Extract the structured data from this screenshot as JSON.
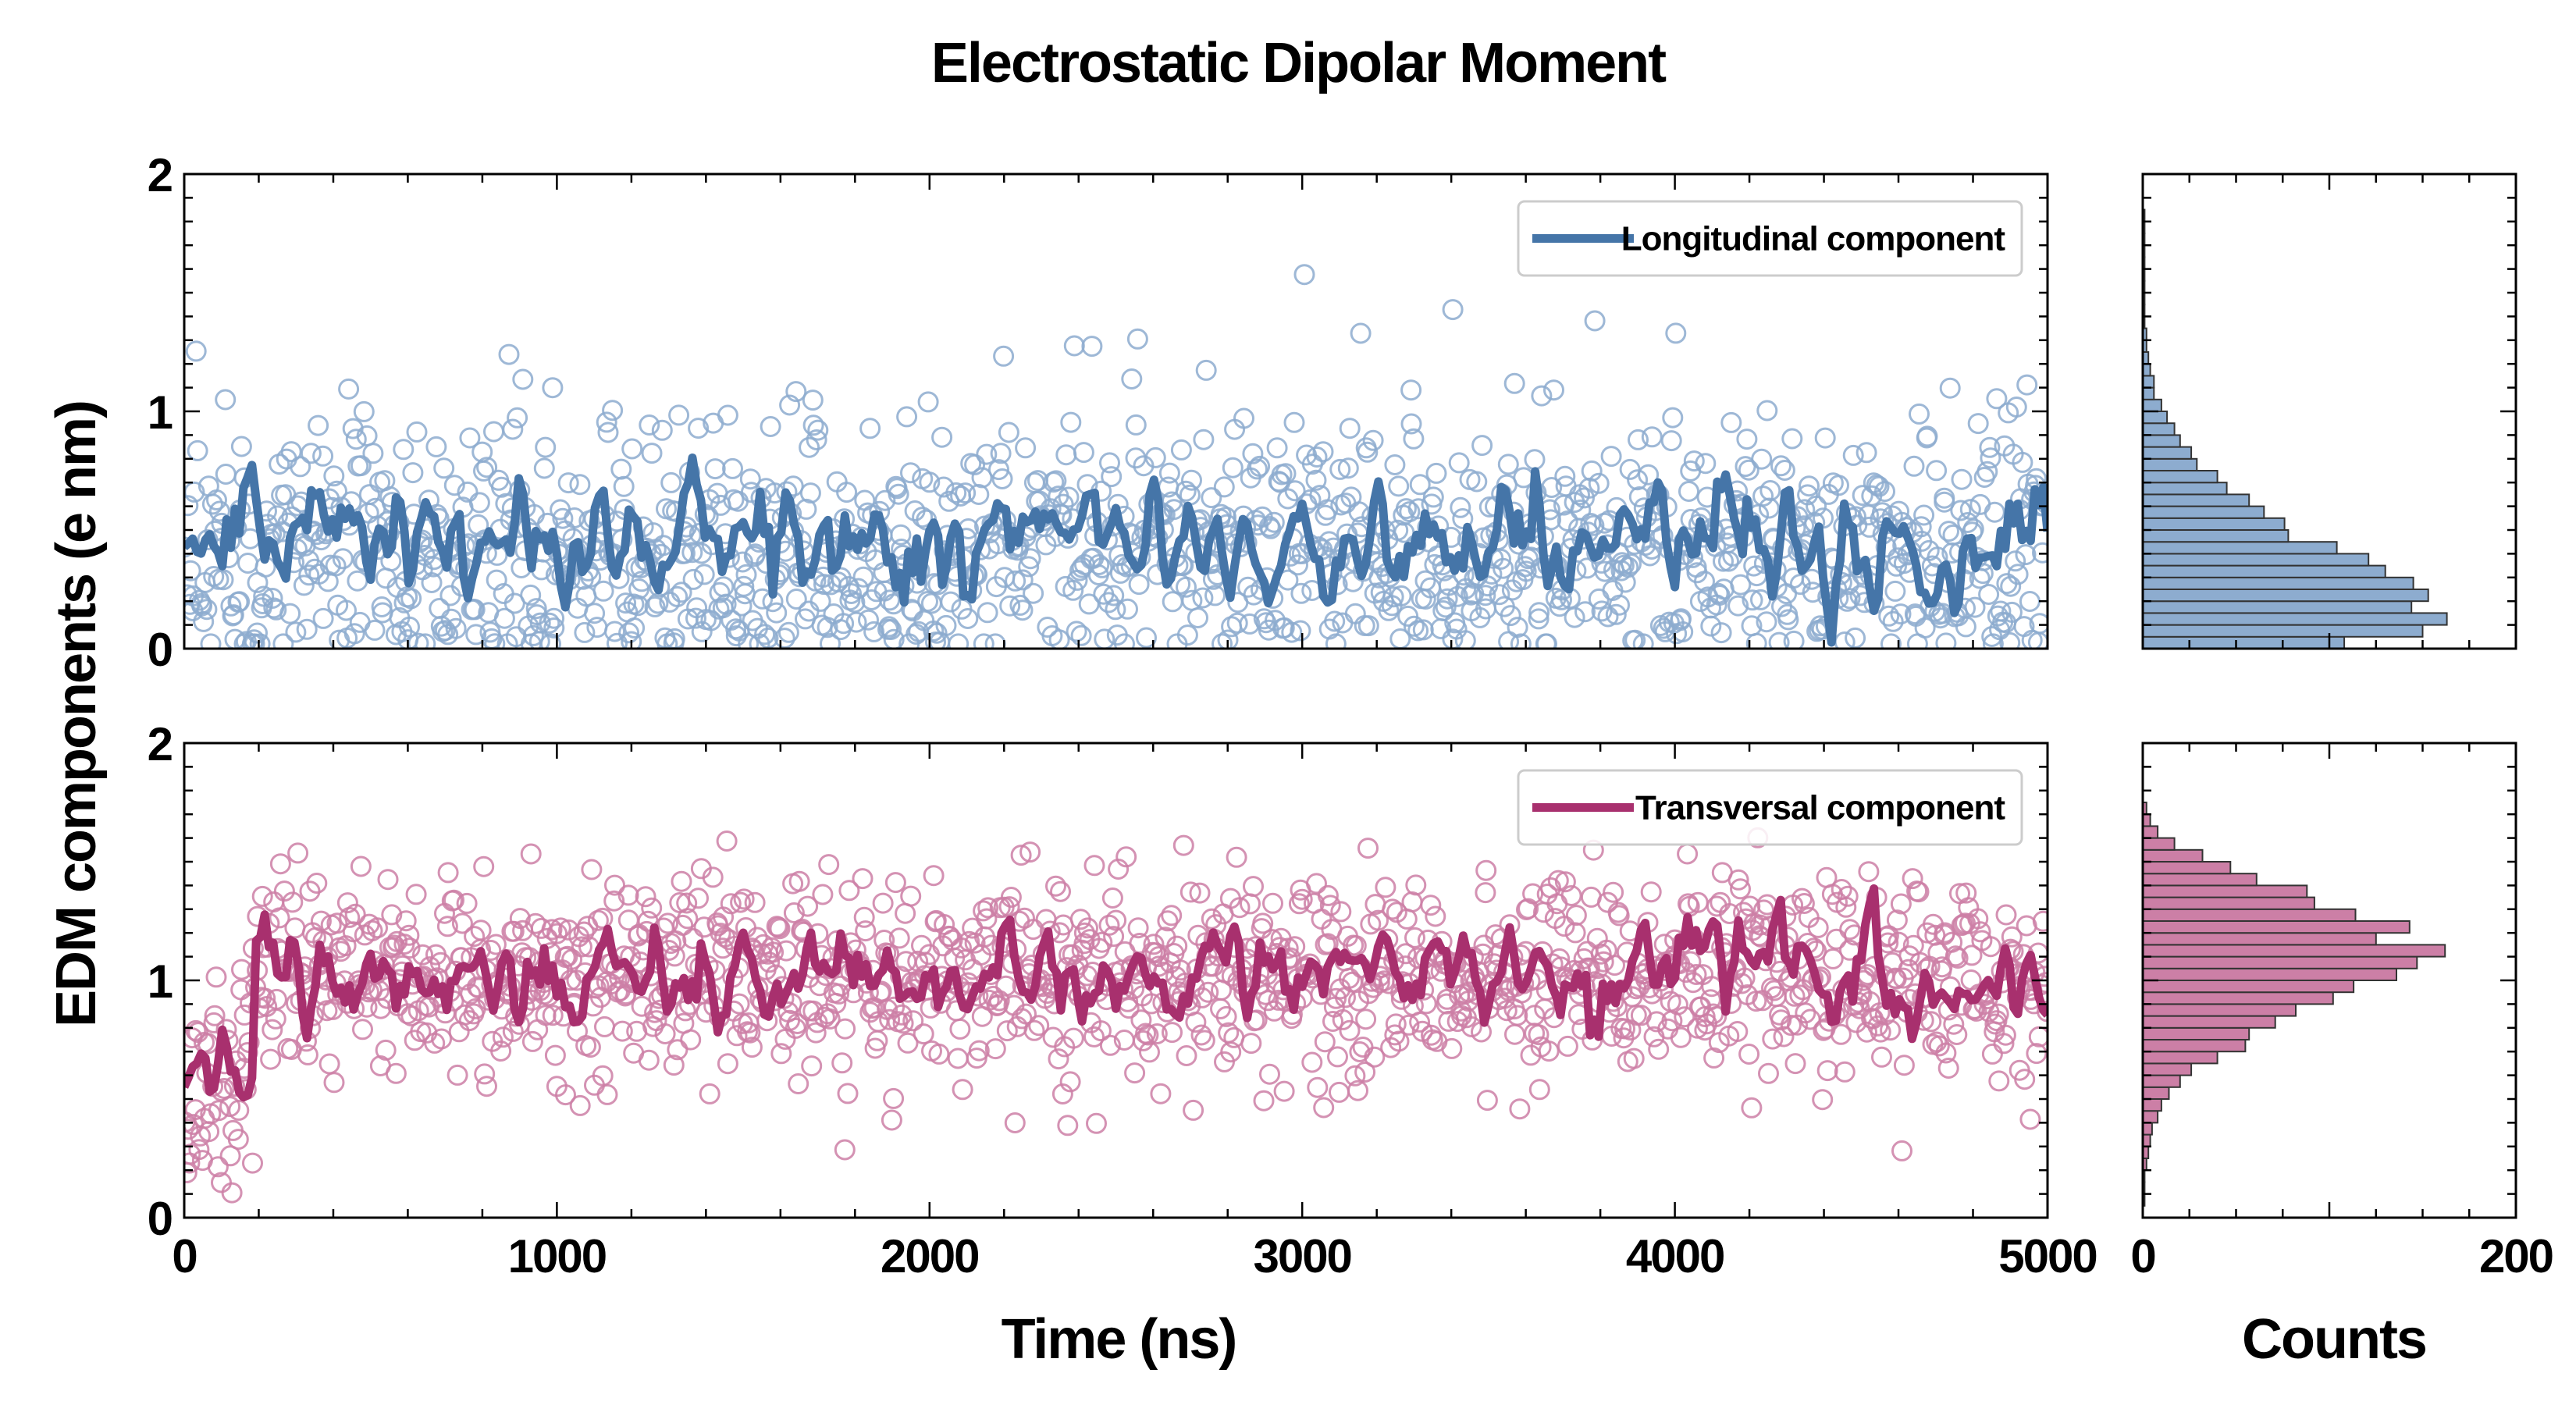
{
  "chart_data": {
    "type": "scatter",
    "title": "Electrostatic Dipolar Moment",
    "ylabel": "EDM components (e nm)",
    "xlabel": "Time (ns)",
    "hist_xlabel": "Counts",
    "xlim": [
      0,
      5000
    ],
    "ylim": [
      0,
      2
    ],
    "hist_xlim": [
      0,
      200
    ],
    "x_ticks": [
      "0",
      "1000",
      "2000",
      "3000",
      "4000",
      "5000"
    ],
    "y_ticks": [
      "0",
      "1",
      "2"
    ],
    "hist_ticks": [
      "0",
      "200"
    ],
    "panels": [
      {
        "name": "Longitudinal component",
        "legend": "Longitudinal component",
        "legend_location": "upper right",
        "color": "#4575a8",
        "marker_color": "#8daccf",
        "mean": 0.45,
        "scatter_spread": 0.3,
        "moving_average_amplitude": 0.14,
        "initial_segment": null,
        "hist_bins": [
          0.0,
          0.05,
          0.1,
          0.15,
          0.2,
          0.25,
          0.3,
          0.35,
          0.4,
          0.45,
          0.5,
          0.55,
          0.6,
          0.65,
          0.7,
          0.75,
          0.8,
          0.85,
          0.9,
          0.95,
          1.0,
          1.05,
          1.1,
          1.15,
          1.2,
          1.25,
          1.3,
          1.35,
          1.4,
          1.45,
          1.5,
          1.55,
          1.6,
          1.65,
          1.7,
          1.75,
          1.8,
          1.85,
          1.9
        ],
        "hist_counts": [
          108,
          150,
          163,
          144,
          153,
          145,
          130,
          121,
          104,
          78,
          76,
          65,
          57,
          45,
          40,
          29,
          26,
          20,
          17,
          13,
          10,
          6,
          6,
          4,
          3,
          2,
          2,
          1,
          1,
          1,
          1,
          1,
          1,
          1,
          1,
          1,
          1,
          0
        ]
      },
      {
        "name": "Transversal component",
        "legend": "Transversal component",
        "legend_location": "upper right",
        "color": "#a8306e",
        "marker_color": "#cc7fa6",
        "mean": 1.02,
        "scatter_spread": 0.22,
        "moving_average_amplitude": 0.12,
        "initial_segment": {
          "end_time": 190,
          "mean": 0.62
        },
        "hist_bins": [
          0.05,
          0.1,
          0.15,
          0.2,
          0.25,
          0.3,
          0.35,
          0.4,
          0.45,
          0.5,
          0.55,
          0.6,
          0.65,
          0.7,
          0.75,
          0.8,
          0.85,
          0.9,
          0.95,
          1.0,
          1.05,
          1.1,
          1.15,
          1.2,
          1.25,
          1.3,
          1.35,
          1.4,
          1.45,
          1.5,
          1.55,
          1.6,
          1.65,
          1.7
        ],
        "hist_counts": [
          1,
          1,
          1,
          2,
          3,
          4,
          5,
          8,
          10,
          14,
          20,
          26,
          40,
          55,
          57,
          71,
          82,
          102,
          113,
          136,
          147,
          162,
          125,
          143,
          114,
          92,
          88,
          61,
          47,
          32,
          17,
          8,
          4,
          2
        ]
      }
    ]
  }
}
